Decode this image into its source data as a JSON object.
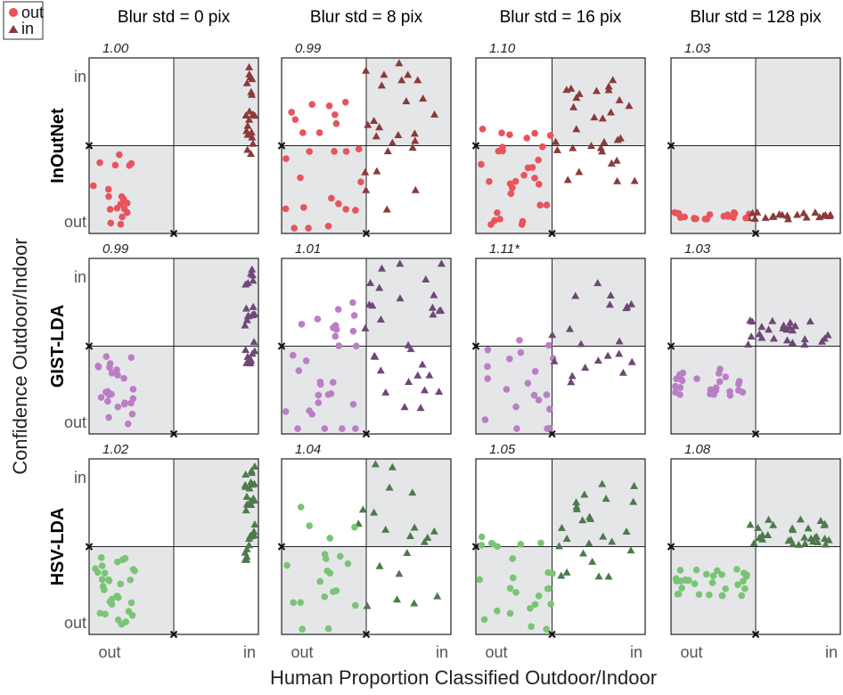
{
  "legend": [
    {
      "label": "out",
      "marker": "circle"
    },
    {
      "label": "in",
      "marker": "triangle"
    }
  ],
  "column_titles": [
    "Blur std = 0 pix",
    "Blur std = 8 pix",
    "Blur std = 16 pix",
    "Blur std = 128 pix"
  ],
  "row_titles": [
    "InOutNet",
    "GIST-LDA",
    "HSV-LDA"
  ],
  "x_axis_title": "Human Proportion Classified Outdoor/Indoor",
  "y_axis_title": "Confidence Outdoor/Indoor",
  "x_ticks": [
    "out",
    "in"
  ],
  "y_ticks": [
    "in",
    "out"
  ],
  "colors": {
    "InOutNet": {
      "out": "#e8545a",
      "in": "#8b3a3a"
    },
    "GIST-LDA": {
      "out": "#bb7ec6",
      "in": "#6e4876"
    },
    "HSV-LDA": {
      "out": "#79c475",
      "in": "#4d7a4d"
    },
    "shade": "#e5e6e8"
  },
  "chart_data": {
    "type": "scatter",
    "x_range": [
      0,
      1
    ],
    "y_range": [
      0,
      1
    ],
    "panels": [
      {
        "model": "InOutNet",
        "blur": 0,
        "score": "1.00",
        "x_threshold": 0.5,
        "y_threshold": 0.5,
        "grid_cells_shaded": [
          "top-right",
          "bottom-left"
        ]
      },
      {
        "model": "InOutNet",
        "blur": 8,
        "score": "0.99",
        "x_threshold": 0.5,
        "y_threshold": 0.5
      },
      {
        "model": "InOutNet",
        "blur": 16,
        "score": "1.10",
        "x_threshold": 0.45,
        "y_threshold": 0.5
      },
      {
        "model": "InOutNet",
        "blur": 128,
        "score": "1.03",
        "x_threshold": 0.5,
        "y_threshold": 0.5
      },
      {
        "model": "GIST-LDA",
        "blur": 0,
        "score": "0.99",
        "x_threshold": 0.5,
        "y_threshold": 0.5
      },
      {
        "model": "GIST-LDA",
        "blur": 8,
        "score": "1.01",
        "x_threshold": 0.5,
        "y_threshold": 0.5
      },
      {
        "model": "GIST-LDA",
        "blur": 16,
        "score": "1.11*",
        "x_threshold": 0.45,
        "y_threshold": 0.5
      },
      {
        "model": "GIST-LDA",
        "blur": 128,
        "score": "1.03",
        "x_threshold": 0.5,
        "y_threshold": 0.5
      },
      {
        "model": "HSV-LDA",
        "blur": 0,
        "score": "1.02",
        "x_threshold": 0.5,
        "y_threshold": 0.5
      },
      {
        "model": "HSV-LDA",
        "blur": 8,
        "score": "1.04",
        "x_threshold": 0.5,
        "y_threshold": 0.5
      },
      {
        "model": "HSV-LDA",
        "blur": 16,
        "score": "1.05",
        "x_threshold": 0.45,
        "y_threshold": 0.5
      },
      {
        "model": "HSV-LDA",
        "blur": 128,
        "score": "1.08",
        "x_threshold": 0.5,
        "y_threshold": 0.5
      }
    ]
  }
}
